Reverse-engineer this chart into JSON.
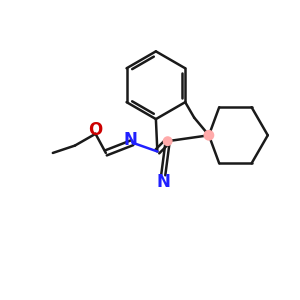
{
  "bg_color": "#ffffff",
  "bond_color": "#1a1a1a",
  "nitrogen_color": "#2020ff",
  "oxygen_color": "#cc0000",
  "spiro_dot_color": "#ffaaaa",
  "lw": 1.8,
  "figsize": [
    3.0,
    3.0
  ],
  "dpi": 100,
  "xlim": [
    0,
    10
  ],
  "ylim": [
    0,
    10
  ]
}
